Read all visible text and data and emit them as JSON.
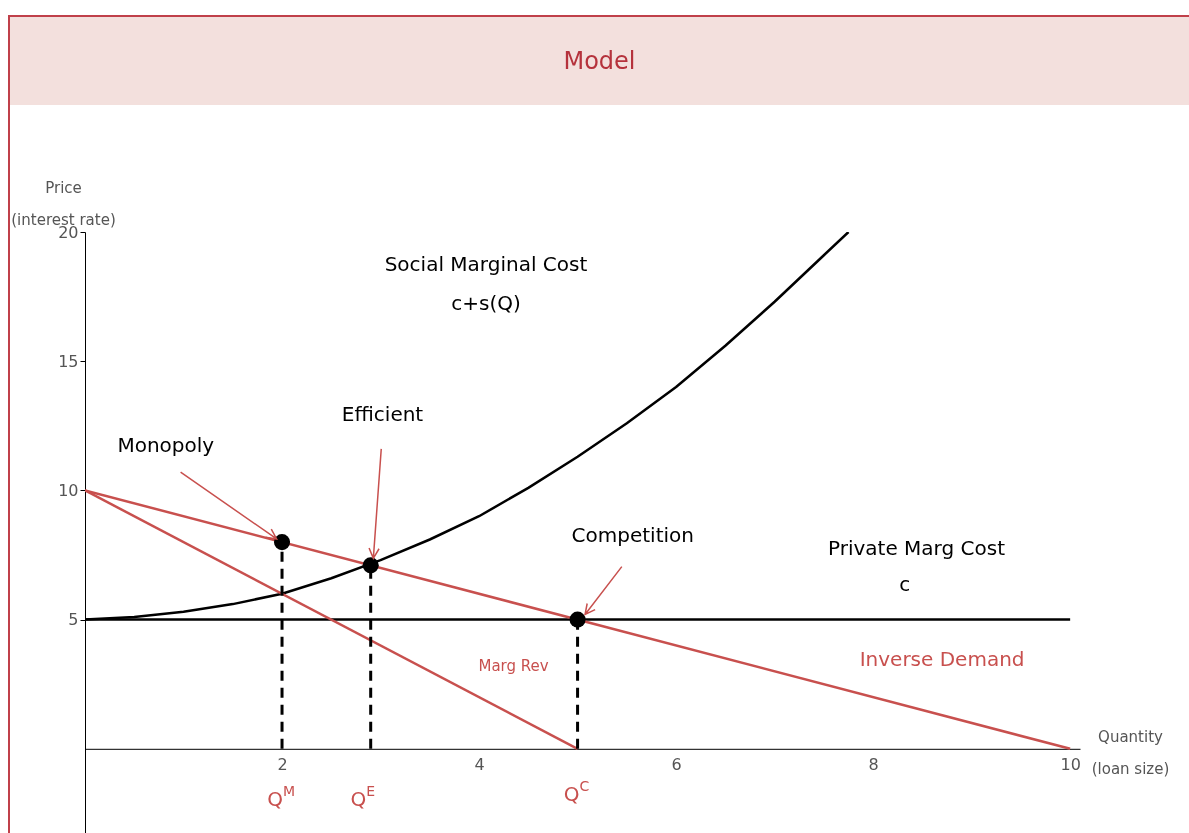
{
  "chart_data": {
    "type": "line",
    "title": "Model",
    "xlabel": "Quantity (loan size)",
    "ylabel": "Price (interest rate)",
    "xlim": [
      0,
      10.1
    ],
    "ylim": [
      -3.8,
      20
    ],
    "xticks": [
      2,
      4,
      6,
      8,
      10
    ],
    "yticks": [
      5,
      10,
      15,
      20
    ],
    "grid": false,
    "series": [
      {
        "color": "#000000",
        "x": [
          0,
          0.5,
          1,
          1.5,
          2,
          2.5,
          3,
          3.5,
          4,
          4.5,
          5,
          5.5,
          6,
          6.5,
          7,
          7.5,
          7.75
        ],
        "values": [
          5,
          5.1,
          5.3,
          5.6,
          6,
          6.6,
          7.3,
          8.1,
          9,
          10.1,
          11.3,
          12.6,
          14,
          15.6,
          17.3,
          19.1,
          20
        ]
      },
      {
        "color": "#000000",
        "x": [
          0,
          10
        ],
        "values": [
          5,
          5
        ]
      },
      {
        "color": "#c8504e",
        "x": [
          0,
          10
        ],
        "values": [
          10,
          0
        ]
      },
      {
        "color": "#c8504e",
        "x": [
          0,
          5
        ],
        "values": [
          10,
          0
        ]
      },
      {
        "color": "#000000",
        "line_style": "dashed",
        "x": [
          2,
          2
        ],
        "values": [
          0,
          8
        ]
      },
      {
        "color": "#000000",
        "line_style": "dashed",
        "x": [
          2.9,
          2.9
        ],
        "values": [
          0,
          7.1
        ]
      },
      {
        "color": "#000000",
        "line_style": "dashed",
        "x": [
          5,
          5
        ],
        "values": [
          0,
          5
        ]
      },
      {
        "type": "scatter",
        "color": "#000000",
        "marker": "circle",
        "x": [
          2,
          2.9,
          5
        ],
        "values": [
          8,
          7.1,
          5
        ]
      }
    ],
    "annotations": [
      "Social Marginal Cost",
      "c+s(Q)",
      {
        "text": "Efficient",
        "x": 2.9,
        "y": 7.1
      },
      {
        "text": "Monopoly",
        "x": 2,
        "y": 8
      },
      {
        "text": "Competition",
        "x": 5,
        "y": 5
      },
      "Private Marg Cost",
      "c",
      "Marg Rev",
      "Inverse Demand",
      "Q$^{M}$",
      "Q$^{E}$",
      "Q$^{C}$"
    ]
  }
}
